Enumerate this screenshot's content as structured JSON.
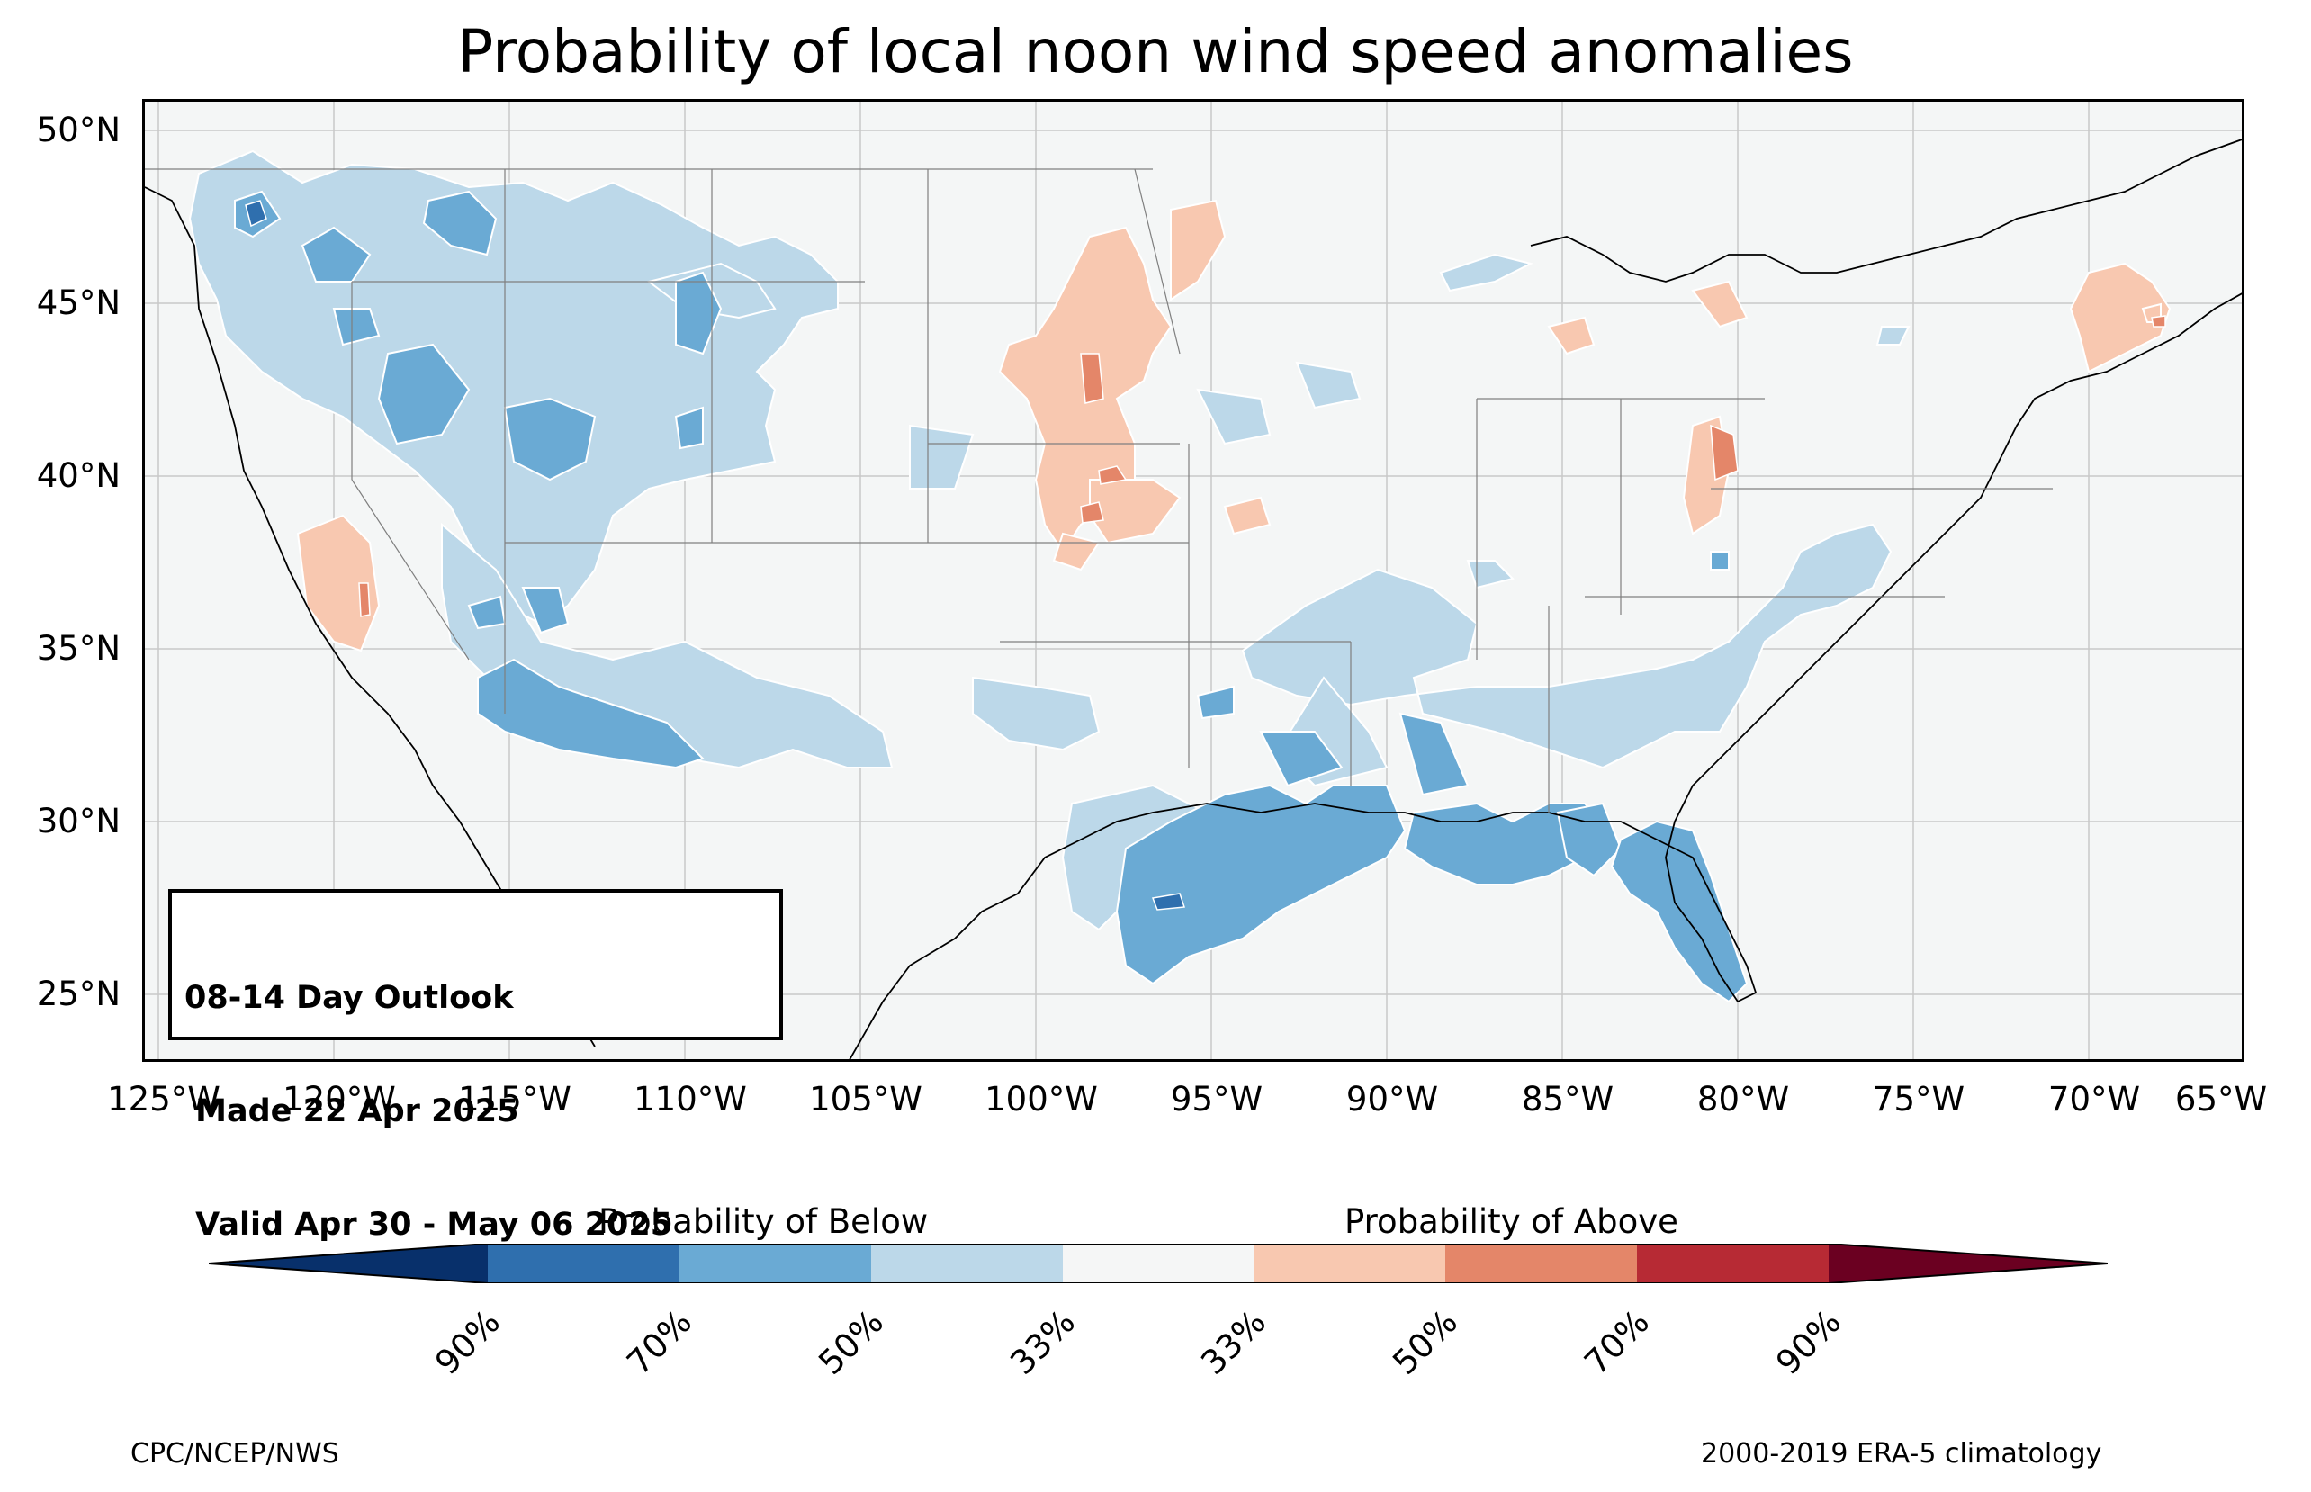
{
  "title": "Probability of local noon wind speed anomalies",
  "latitude_labels": [
    "50°N",
    "45°N",
    "40°N",
    "35°N",
    "30°N",
    "25°N"
  ],
  "longitude_labels": [
    "125°W",
    "120°W",
    "115°W",
    "110°W",
    "105°W",
    "100°W",
    "95°W",
    "90°W",
    "85°W",
    "80°W",
    "75°W",
    "70°W",
    "65°W"
  ],
  "info_box": {
    "line1": "08-14 Day Outlook",
    "line2": " Made 22 Apr 2025",
    "line3": " Valid Apr 30 - May 06 2025"
  },
  "colorbar": {
    "below_title": "Probability of Below",
    "above_title": "Probability of Above",
    "tick_labels": [
      "90%",
      "70%",
      "50%",
      "33%",
      "33%",
      "50%",
      "70%",
      "90%"
    ],
    "colors": [
      "#08306b",
      "#2f6fae",
      "#6aaad4",
      "#bcd8e9",
      "#f5f6f6",
      "#f8c8b0",
      "#e48669",
      "#b72a34",
      "#6b0021"
    ]
  },
  "footer": {
    "left": "CPC/NCEP/NWS",
    "right": "2000-2019 ERA-5 climatology"
  },
  "colors": {
    "ocean": "#f4f6f6",
    "below_33": "#bcd8e9",
    "below_50": "#6aaad4",
    "below_70": "#2f6fae",
    "above_33": "#f8c8b0",
    "above_50": "#e48669",
    "above_70": "#b72a34"
  }
}
